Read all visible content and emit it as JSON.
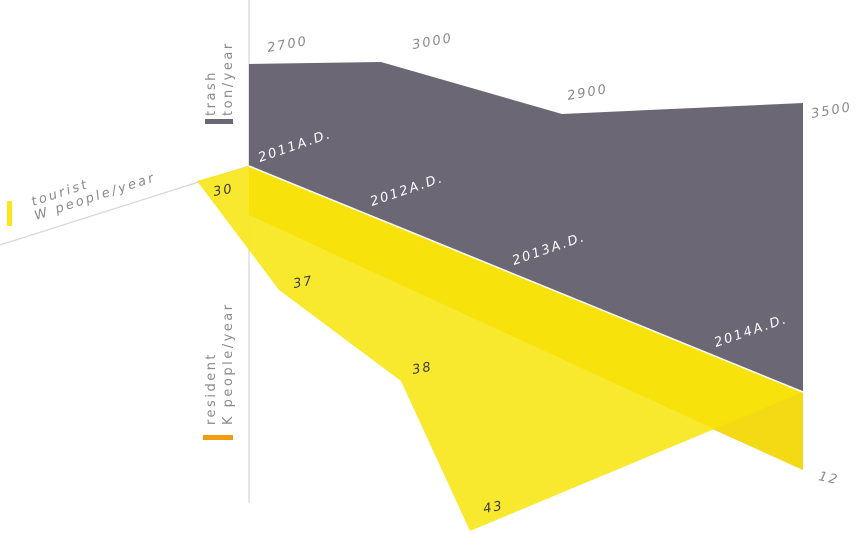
{
  "chart_data": {
    "type": "area",
    "years": [
      "2011A.D.",
      "2012A.D.",
      "2013A.D.",
      "2014A.D."
    ],
    "series": [
      {
        "name": "trash",
        "unit": "ton/year",
        "values": [
          2700,
          3000,
          2900,
          3500
        ],
        "labels": [
          "2700",
          "3000",
          "2900",
          "3500"
        ]
      },
      {
        "name": "tourist",
        "unit": "W people/year",
        "values": [
          30,
          37,
          38,
          43
        ],
        "labels": [
          "30",
          "37",
          "38",
          "43"
        ]
      },
      {
        "name": "resident",
        "unit": "K people/year",
        "values": [
          12
        ],
        "labels": [
          "12"
        ]
      }
    ],
    "colors": {
      "trash": "#6b6775",
      "tourist": "#f8e71c",
      "tourist_band": "#f5e000",
      "resident": "#f0c850",
      "resident_swatch": "#f29c11",
      "axis": "#d0d0d0",
      "text_dark": "#3a3a3a",
      "text_grey": "#8a8a8a"
    }
  }
}
